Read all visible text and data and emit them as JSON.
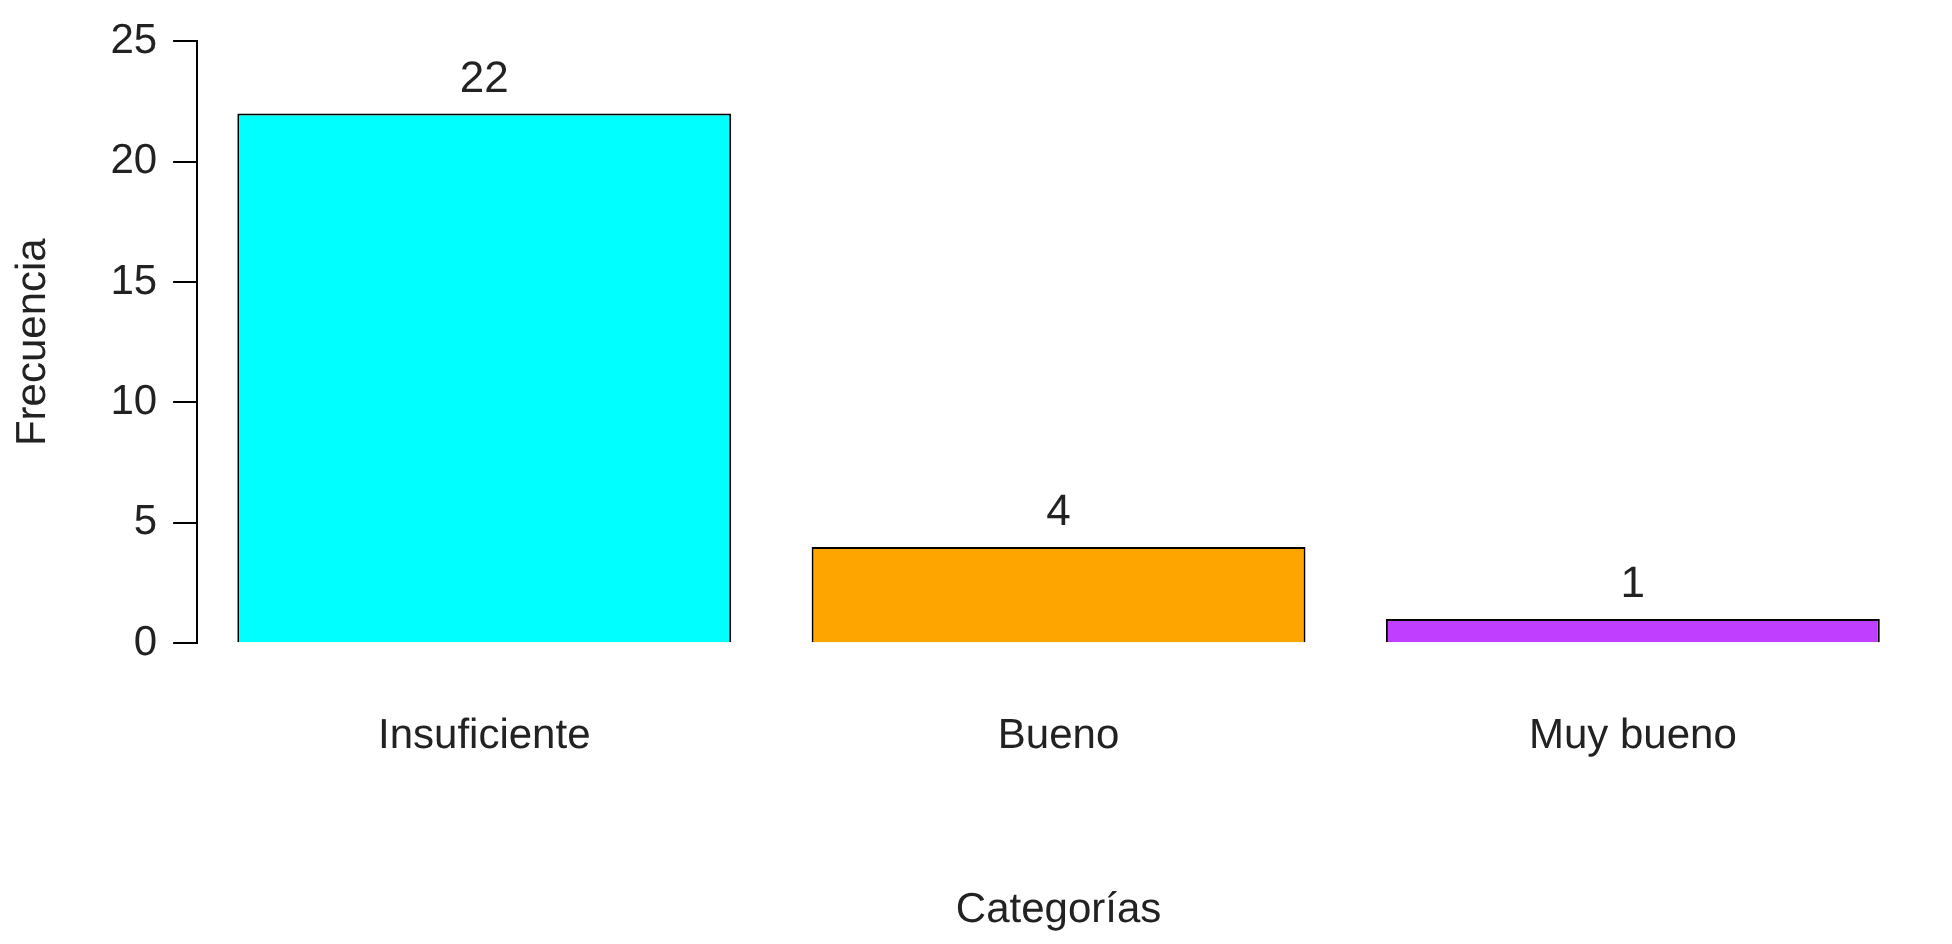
{
  "chart_data": {
    "type": "bar",
    "xlabel": "Categorías",
    "ylabel": "Frecuencia",
    "categories": [
      "Insuficiente",
      "Bueno",
      "Muy bueno"
    ],
    "values": [
      22,
      4,
      1
    ],
    "colors": [
      "#00ffff",
      "#ffa500",
      "#bf3eff"
    ],
    "ylim": [
      0,
      25
    ],
    "yticks": [
      0,
      5,
      10,
      15,
      20,
      25
    ],
    "grid": false,
    "legend": false,
    "data_labels": true
  }
}
